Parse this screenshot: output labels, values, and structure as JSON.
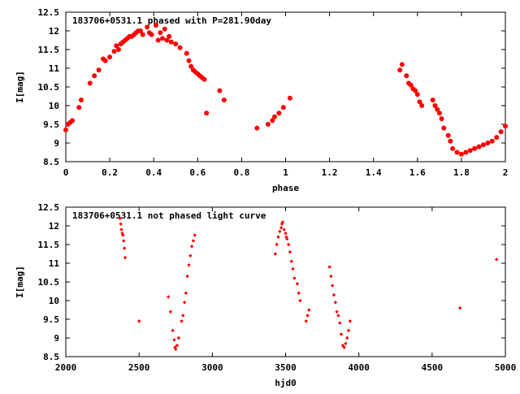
{
  "colors": {
    "points": "#ff0000",
    "frame": "#000000",
    "background": "#ffffff"
  },
  "chart_data": [
    {
      "type": "scatter",
      "title": "183706+0531.1 phased with P=281.90day",
      "xlabel": "phase",
      "ylabel": "I[mag]",
      "xlim": [
        0,
        2
      ],
      "ylim": [
        12.5,
        8.5
      ],
      "y_inverted": true,
      "grid": false,
      "x_ticks": [
        "0",
        "0.2",
        "0.4",
        "0.6",
        "0.8",
        "1",
        "1.2",
        "1.4",
        "1.6",
        "1.8",
        "2"
      ],
      "y_ticks": [
        "8.5",
        "9",
        "9.5",
        "10",
        "10.5",
        "11",
        "11.5",
        "12",
        "12.5"
      ],
      "marker": "filled-circle",
      "x": [
        0.0,
        0.01,
        0.02,
        0.03,
        0.06,
        0.07,
        0.11,
        0.13,
        0.15,
        0.17,
        0.18,
        0.2,
        0.22,
        0.23,
        0.24,
        0.25,
        0.26,
        0.27,
        0.28,
        0.29,
        0.3,
        0.31,
        0.32,
        0.33,
        0.34,
        0.35,
        0.37,
        0.38,
        0.39,
        0.41,
        0.42,
        0.43,
        0.44,
        0.45,
        0.46,
        0.47,
        0.48,
        0.5,
        0.52,
        0.55,
        0.56,
        0.57,
        0.58,
        0.59,
        0.6,
        0.61,
        0.62,
        0.63,
        0.64,
        0.7,
        0.72,
        0.87,
        0.92,
        0.94,
        0.95,
        0.97,
        0.99,
        1.02,
        1.52,
        1.53,
        1.55,
        1.56,
        1.57,
        1.58,
        1.59,
        1.6,
        1.61,
        1.62,
        1.67,
        1.68,
        1.69,
        1.7,
        1.71,
        1.72,
        1.74,
        1.75,
        1.76,
        1.78,
        1.8,
        1.82,
        1.84,
        1.86,
        1.88,
        1.9,
        1.92,
        1.94,
        1.96,
        1.98,
        2.0
      ],
      "y": [
        9.35,
        9.5,
        9.55,
        9.6,
        9.95,
        10.15,
        10.6,
        10.8,
        10.95,
        11.25,
        11.2,
        11.3,
        11.45,
        11.6,
        11.5,
        11.65,
        11.7,
        11.75,
        11.8,
        11.85,
        11.85,
        11.9,
        11.95,
        12.0,
        12.0,
        11.9,
        12.1,
        11.95,
        11.9,
        12.15,
        11.75,
        11.95,
        11.8,
        12.05,
        11.75,
        11.85,
        11.7,
        11.65,
        11.55,
        11.4,
        11.2,
        11.05,
        10.95,
        10.9,
        10.85,
        10.8,
        10.75,
        10.7,
        9.8,
        10.4,
        10.15,
        9.4,
        9.5,
        9.6,
        9.7,
        9.8,
        9.95,
        10.2,
        10.95,
        11.1,
        10.8,
        10.6,
        10.55,
        10.45,
        10.4,
        10.3,
        10.1,
        10.0,
        10.15,
        10.0,
        9.9,
        9.8,
        9.65,
        9.4,
        9.2,
        9.05,
        8.85,
        8.75,
        8.7,
        8.75,
        8.8,
        8.85,
        8.9,
        8.95,
        9.0,
        9.05,
        9.15,
        9.3,
        9.45
      ]
    },
    {
      "type": "scatter",
      "title": "183706+0531.1 not phased light curve",
      "xlabel": "hjd0",
      "ylabel": "I[mag]",
      "xlim": [
        2000,
        5000
      ],
      "ylim": [
        12.5,
        8.5
      ],
      "y_inverted": true,
      "grid": false,
      "x_ticks": [
        "2000",
        "2500",
        "3000",
        "3500",
        "4000",
        "4500",
        "5000"
      ],
      "y_ticks": [
        "8.5",
        "9",
        "9.5",
        "10",
        "10.5",
        "11",
        "11.5",
        "12",
        "12.5"
      ],
      "marker": "small-diamond",
      "x": [
        2370,
        2375,
        2380,
        2385,
        2390,
        2395,
        2400,
        2405,
        2500,
        2700,
        2715,
        2730,
        2740,
        2745,
        2750,
        2760,
        2770,
        2790,
        2800,
        2810,
        2820,
        2830,
        2840,
        2850,
        2860,
        2870,
        2880,
        3430,
        3440,
        3450,
        3460,
        3470,
        3475,
        3480,
        3490,
        3500,
        3505,
        3510,
        3520,
        3530,
        3540,
        3550,
        3560,
        3580,
        3590,
        3600,
        3640,
        3650,
        3660,
        3800,
        3810,
        3820,
        3830,
        3840,
        3850,
        3860,
        3870,
        3880,
        3890,
        3900,
        3910,
        3920,
        3930,
        3940,
        4690,
        4940
      ],
      "y": [
        12.2,
        12.05,
        11.9,
        11.8,
        11.75,
        11.6,
        11.4,
        11.15,
        9.45,
        10.1,
        9.7,
        9.2,
        8.95,
        8.75,
        8.7,
        8.8,
        9.0,
        9.45,
        9.6,
        9.95,
        10.2,
        10.65,
        10.95,
        11.2,
        11.45,
        11.6,
        11.75,
        11.25,
        11.5,
        11.7,
        11.85,
        11.95,
        12.05,
        12.1,
        11.9,
        11.8,
        11.7,
        11.65,
        11.5,
        11.3,
        11.05,
        10.85,
        10.6,
        10.45,
        10.2,
        10.0,
        9.45,
        9.6,
        9.75,
        10.9,
        10.65,
        10.4,
        10.15,
        9.95,
        9.7,
        9.6,
        9.4,
        9.1,
        8.8,
        8.75,
        8.85,
        9.0,
        9.2,
        9.45,
        9.8,
        11.1
      ]
    }
  ]
}
